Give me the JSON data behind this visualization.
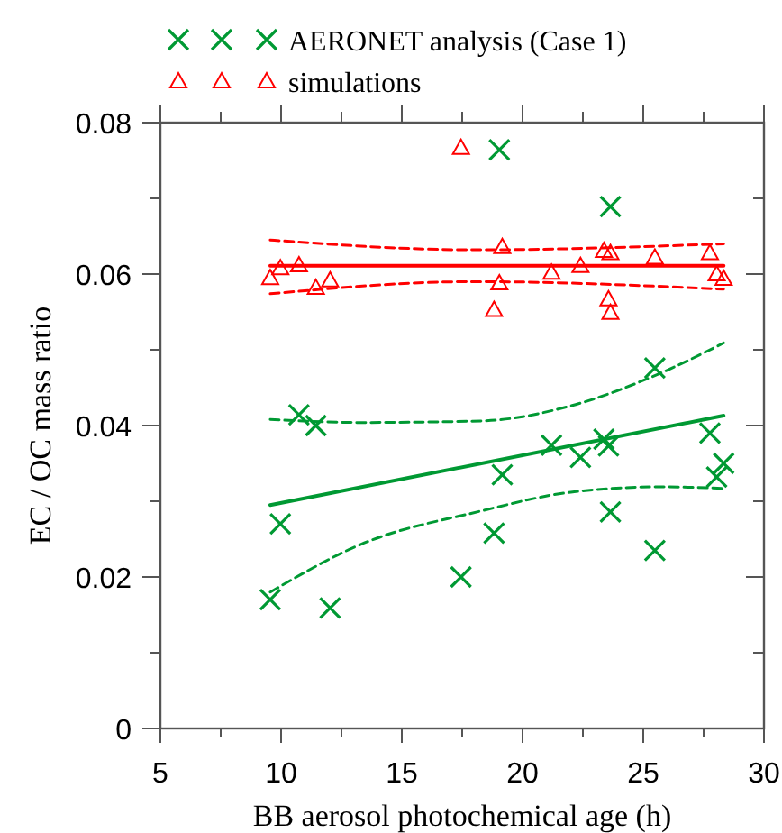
{
  "chart_data": {
    "type": "scatter",
    "xlabel": "BB aerosol photochemical age (h)",
    "ylabel": "EC / OC mass ratio",
    "xlim": [
      5,
      30
    ],
    "ylim": [
      0,
      0.08
    ],
    "xticks": [
      5,
      {
        "value": 7.5,
        "label": null
      },
      10,
      {
        "value": 12.5,
        "label": null
      },
      15,
      {
        "value": 17.5,
        "label": null
      },
      20,
      {
        "value": 22.5,
        "label": null
      },
      25,
      {
        "value": 27.5,
        "label": null
      },
      30
    ],
    "yticks": [
      {
        "value": 0,
        "label": "0"
      },
      {
        "value": 0.01,
        "label": null
      },
      0.02,
      {
        "value": 0.03,
        "label": null
      },
      0.04,
      {
        "value": 0.05,
        "label": null
      },
      0.06,
      {
        "value": 0.07,
        "label": null
      },
      0.08
    ],
    "legend": "top",
    "grid": false,
    "series": [
      {
        "name": "AERONET analysis (Case 1)",
        "marker": "cross",
        "color": "#009933",
        "x": [
          9.55,
          9.97,
          10.74,
          11.44,
          12.03,
          17.45,
          18.82,
          19.04,
          19.16,
          21.2,
          22.4,
          23.37,
          23.56,
          23.64,
          23.64,
          25.48,
          25.48,
          27.76,
          28.04,
          28.33
        ],
        "values": [
          0.017,
          0.027,
          0.0414,
          0.04,
          0.0159,
          0.02,
          0.0258,
          0.0764,
          0.0335,
          0.0374,
          0.0358,
          0.0382,
          0.0373,
          0.0689,
          0.0286,
          0.0476,
          0.0235,
          0.039,
          0.0332,
          0.035
        ]
      },
      {
        "name": "simulations",
        "marker": "triangle",
        "color": "#ff0000",
        "x": [
          9.55,
          9.97,
          10.74,
          11.44,
          12.03,
          17.45,
          18.82,
          19.04,
          19.16,
          21.2,
          22.4,
          23.37,
          23.56,
          23.64,
          23.64,
          25.48,
          27.76,
          28.04,
          28.33
        ],
        "values": [
          0.0595,
          0.0608,
          0.0612,
          0.0582,
          0.0592,
          0.0767,
          0.0553,
          0.0588,
          0.0636,
          0.0602,
          0.0611,
          0.0631,
          0.0567,
          0.0628,
          0.0549,
          0.0622,
          0.0628,
          0.06,
          0.0594
        ]
      },
      {
        "type": "line",
        "color": "#009933",
        "line_style": "solid",
        "x": [
          9.55,
          28.33
        ],
        "values": [
          0.0295,
          0.0413
        ]
      },
      {
        "type": "line",
        "color": "#009933",
        "line_style": "dashed",
        "x": [
          9.55,
          13.3,
          18.27,
          22.0,
          25.7,
          28.33
        ],
        "values": [
          0.0408,
          0.0404,
          0.0406,
          0.0426,
          0.0469,
          0.0509
        ]
      },
      {
        "type": "line",
        "color": "#009933",
        "line_style": "dashed",
        "x": [
          9.55,
          13.3,
          18.27,
          22.0,
          25.7,
          28.33
        ],
        "values": [
          0.018,
          0.0243,
          0.0287,
          0.0312,
          0.0319,
          0.0317
        ]
      },
      {
        "type": "line",
        "color": "#ff0000",
        "line_style": "solid",
        "x": [
          9.55,
          28.33
        ],
        "values": [
          0.0611,
          0.0611
        ]
      },
      {
        "type": "line",
        "color": "#ff0000",
        "line_style": "dashed",
        "x": [
          9.55,
          18,
          28.33
        ],
        "values": [
          0.0645,
          0.0632,
          0.064
        ]
      },
      {
        "type": "line",
        "color": "#ff0000",
        "line_style": "dashed",
        "x": [
          9.55,
          18,
          28.33
        ],
        "values": [
          0.0574,
          0.059,
          0.058
        ]
      }
    ]
  }
}
